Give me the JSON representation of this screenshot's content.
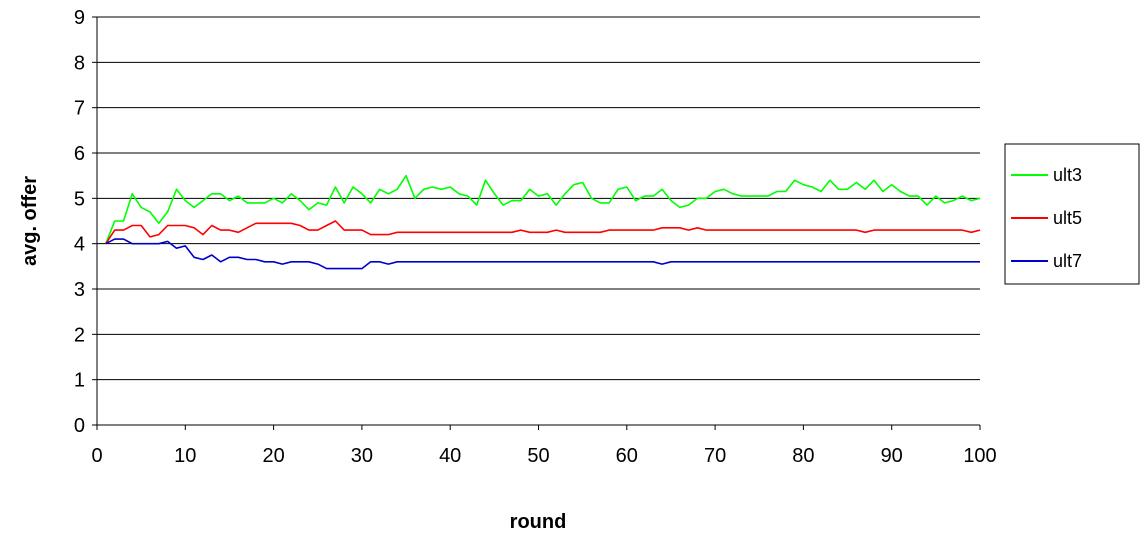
{
  "chart_data": {
    "type": "line",
    "title": "",
    "xlabel": "round",
    "ylabel": "avg. offer",
    "xlim": [
      0,
      100
    ],
    "ylim": [
      0,
      9
    ],
    "xticks": [
      0,
      10,
      20,
      30,
      40,
      50,
      60,
      70,
      80,
      90,
      100
    ],
    "yticks": [
      0,
      1,
      2,
      3,
      4,
      5,
      6,
      7,
      8,
      9
    ],
    "grid": "horizontal",
    "legend_position": "right",
    "series": [
      {
        "name": "ult3",
        "color": "#00ff00",
        "x": [
          1,
          2,
          3,
          4,
          5,
          6,
          7,
          8,
          9,
          10,
          11,
          12,
          13,
          14,
          15,
          16,
          17,
          18,
          19,
          20,
          21,
          22,
          23,
          24,
          25,
          26,
          27,
          28,
          29,
          30,
          31,
          32,
          33,
          34,
          35,
          36,
          37,
          38,
          39,
          40,
          41,
          42,
          43,
          44,
          45,
          46,
          47,
          48,
          49,
          50,
          51,
          52,
          53,
          54,
          55,
          56,
          57,
          58,
          59,
          60,
          61,
          62,
          63,
          64,
          65,
          66,
          67,
          68,
          69,
          70,
          71,
          72,
          73,
          74,
          75,
          76,
          77,
          78,
          79,
          80,
          81,
          82,
          83,
          84,
          85,
          86,
          87,
          88,
          89,
          90,
          91,
          92,
          93,
          94,
          95,
          96,
          97,
          98,
          99,
          100
        ],
        "values": [
          4.0,
          4.5,
          4.5,
          5.1,
          4.8,
          4.7,
          4.45,
          4.7,
          5.2,
          4.95,
          4.8,
          4.95,
          5.1,
          5.1,
          4.95,
          5.05,
          4.9,
          4.9,
          4.9,
          5.0,
          4.9,
          5.1,
          4.95,
          4.75,
          4.9,
          4.85,
          5.25,
          4.9,
          5.25,
          5.1,
          4.9,
          5.2,
          5.1,
          5.2,
          5.5,
          5.0,
          5.2,
          5.25,
          5.2,
          5.25,
          5.1,
          5.05,
          4.85,
          5.4,
          5.1,
          4.85,
          4.95,
          4.95,
          5.2,
          5.05,
          5.1,
          4.85,
          5.1,
          5.3,
          5.35,
          5.0,
          4.9,
          4.9,
          5.2,
          5.25,
          4.95,
          5.05,
          5.05,
          5.2,
          4.95,
          4.8,
          4.85,
          5.0,
          5.0,
          5.15,
          5.2,
          5.1,
          5.05,
          5.05,
          5.05,
          5.05,
          5.15,
          5.15,
          5.4,
          5.3,
          5.25,
          5.15,
          5.4,
          5.2,
          5.2,
          5.35,
          5.2,
          5.4,
          5.15,
          5.3,
          5.15,
          5.05,
          5.05,
          4.85,
          5.05,
          4.9,
          4.95,
          5.05,
          4.95,
          5.0
        ]
      },
      {
        "name": "ult5",
        "color": "#ff0000",
        "x": [
          1,
          2,
          3,
          4,
          5,
          6,
          7,
          8,
          9,
          10,
          11,
          12,
          13,
          14,
          15,
          16,
          17,
          18,
          19,
          20,
          21,
          22,
          23,
          24,
          25,
          26,
          27,
          28,
          29,
          30,
          31,
          32,
          33,
          34,
          35,
          36,
          37,
          38,
          39,
          40,
          41,
          42,
          43,
          44,
          45,
          46,
          47,
          48,
          49,
          50,
          51,
          52,
          53,
          54,
          55,
          56,
          57,
          58,
          59,
          60,
          61,
          62,
          63,
          64,
          65,
          66,
          67,
          68,
          69,
          70,
          71,
          72,
          73,
          74,
          75,
          76,
          77,
          78,
          79,
          80,
          81,
          82,
          83,
          84,
          85,
          86,
          87,
          88,
          89,
          90,
          91,
          92,
          93,
          94,
          95,
          96,
          97,
          98,
          99,
          100
        ],
        "values": [
          4.0,
          4.3,
          4.3,
          4.4,
          4.4,
          4.15,
          4.2,
          4.4,
          4.4,
          4.4,
          4.35,
          4.2,
          4.4,
          4.3,
          4.3,
          4.25,
          4.35,
          4.45,
          4.45,
          4.45,
          4.45,
          4.45,
          4.4,
          4.3,
          4.3,
          4.4,
          4.5,
          4.3,
          4.3,
          4.3,
          4.2,
          4.2,
          4.2,
          4.25,
          4.25,
          4.25,
          4.25,
          4.25,
          4.25,
          4.25,
          4.25,
          4.25,
          4.25,
          4.25,
          4.25,
          4.25,
          4.25,
          4.3,
          4.25,
          4.25,
          4.25,
          4.3,
          4.25,
          4.25,
          4.25,
          4.25,
          4.25,
          4.3,
          4.3,
          4.3,
          4.3,
          4.3,
          4.3,
          4.35,
          4.35,
          4.35,
          4.3,
          4.35,
          4.3,
          4.3,
          4.3,
          4.3,
          4.3,
          4.3,
          4.3,
          4.3,
          4.3,
          4.3,
          4.3,
          4.3,
          4.3,
          4.3,
          4.3,
          4.3,
          4.3,
          4.3,
          4.25,
          4.3,
          4.3,
          4.3,
          4.3,
          4.3,
          4.3,
          4.3,
          4.3,
          4.3,
          4.3,
          4.3,
          4.25,
          4.3
        ]
      },
      {
        "name": "ult7",
        "color": "#0000cc",
        "x": [
          1,
          2,
          3,
          4,
          5,
          6,
          7,
          8,
          9,
          10,
          11,
          12,
          13,
          14,
          15,
          16,
          17,
          18,
          19,
          20,
          21,
          22,
          23,
          24,
          25,
          26,
          27,
          28,
          29,
          30,
          31,
          32,
          33,
          34,
          35,
          36,
          37,
          38,
          39,
          40,
          41,
          42,
          43,
          44,
          45,
          46,
          47,
          48,
          49,
          50,
          51,
          52,
          53,
          54,
          55,
          56,
          57,
          58,
          59,
          60,
          61,
          62,
          63,
          64,
          65,
          66,
          67,
          68,
          69,
          70,
          71,
          72,
          73,
          74,
          75,
          76,
          77,
          78,
          79,
          80,
          81,
          82,
          83,
          84,
          85,
          86,
          87,
          88,
          89,
          90,
          91,
          92,
          93,
          94,
          95,
          96,
          97,
          98,
          99,
          100
        ],
        "values": [
          4.0,
          4.1,
          4.1,
          4.0,
          4.0,
          4.0,
          4.0,
          4.05,
          3.9,
          3.95,
          3.7,
          3.65,
          3.75,
          3.6,
          3.7,
          3.7,
          3.65,
          3.65,
          3.6,
          3.6,
          3.55,
          3.6,
          3.6,
          3.6,
          3.55,
          3.45,
          3.45,
          3.45,
          3.45,
          3.45,
          3.6,
          3.6,
          3.55,
          3.6,
          3.6,
          3.6,
          3.6,
          3.6,
          3.6,
          3.6,
          3.6,
          3.6,
          3.6,
          3.6,
          3.6,
          3.6,
          3.6,
          3.6,
          3.6,
          3.6,
          3.6,
          3.6,
          3.6,
          3.6,
          3.6,
          3.6,
          3.6,
          3.6,
          3.6,
          3.6,
          3.6,
          3.6,
          3.6,
          3.55,
          3.6,
          3.6,
          3.6,
          3.6,
          3.6,
          3.6,
          3.6,
          3.6,
          3.6,
          3.6,
          3.6,
          3.6,
          3.6,
          3.6,
          3.6,
          3.6,
          3.6,
          3.6,
          3.6,
          3.6,
          3.6,
          3.6,
          3.6,
          3.6,
          3.6,
          3.6,
          3.6,
          3.6,
          3.6,
          3.6,
          3.6,
          3.6,
          3.6,
          3.6,
          3.6,
          3.6
        ]
      }
    ]
  }
}
